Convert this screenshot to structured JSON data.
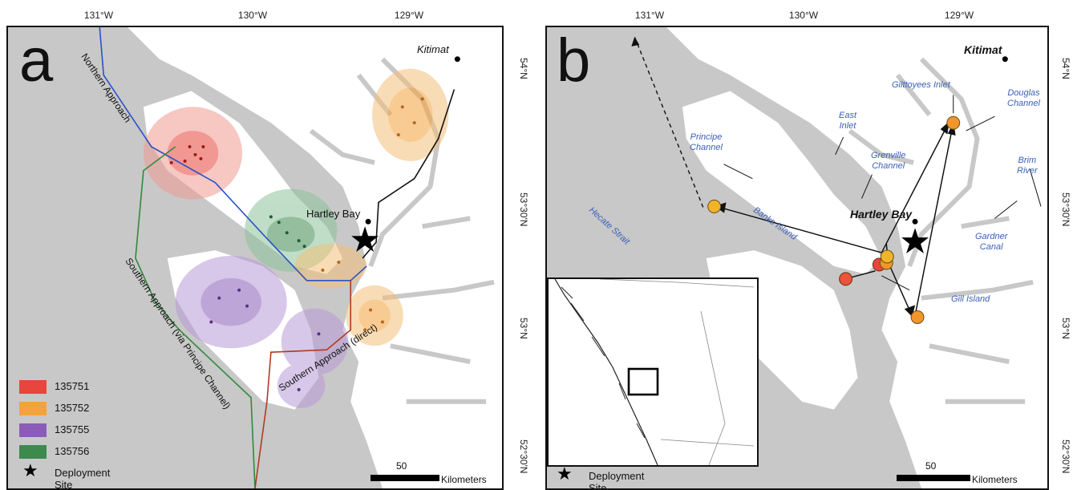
{
  "panel_a": {
    "letter": "a",
    "lon_ticks": [
      "131°W",
      "130°W",
      "129°W"
    ],
    "lat_ticks": [
      "54°N",
      "53°30'N",
      "53°N",
      "52°30'N"
    ],
    "places": {
      "kitimat": "Kitimat",
      "hartley_bay": "Hartley Bay"
    },
    "routes": {
      "northern": "Northern Approach",
      "southern_principe": "Southern Approach (via Principe Channel)",
      "southern_direct": "Southern Approach (direct)"
    },
    "legend": [
      {
        "label": "135751",
        "color": "#e8453c"
      },
      {
        "label": "135752",
        "color": "#f4a23c"
      },
      {
        "label": "135755",
        "color": "#8a5cb8"
      },
      {
        "label": "135756",
        "color": "#3d8a4f"
      }
    ],
    "legend_star_label": "Deployment Site",
    "scale": {
      "value": "50",
      "unit": "Kilometers"
    }
  },
  "panel_b": {
    "letter": "b",
    "lon_ticks": [
      "131°W",
      "130°W",
      "129°W"
    ],
    "lat_ticks": [
      "54°N",
      "53°30'N",
      "53°N",
      "52°30'N"
    ],
    "places": {
      "kitimat": "Kitimat",
      "hartley_bay": "Hartley Bay"
    },
    "features": {
      "gilttoyees": "Gilttoyees Inlet",
      "douglas": "Douglas\nChannel",
      "east_inlet": "East\nInlet",
      "principe": "Principe\nChannel",
      "grenville": "Grenville\nChannel",
      "brim": "Brim\nRiver",
      "hecate": "Hecate Strait",
      "banks": "Banks Island",
      "gardner": "Gardner\nCanal",
      "gill": "Gill Island"
    },
    "legend_star_label": "Deployment Site",
    "scale": {
      "value": "50",
      "unit": "Kilometers"
    }
  },
  "colors": {
    "water": "#c8c8c8",
    "land": "#ffffff",
    "northern_route": "#2a52c8",
    "southern_principe_route": "#2e8a3a",
    "southern_direct_route": "#b03a1e",
    "kitimat_route": "#111111",
    "feature_label": "#3a5fb8"
  }
}
